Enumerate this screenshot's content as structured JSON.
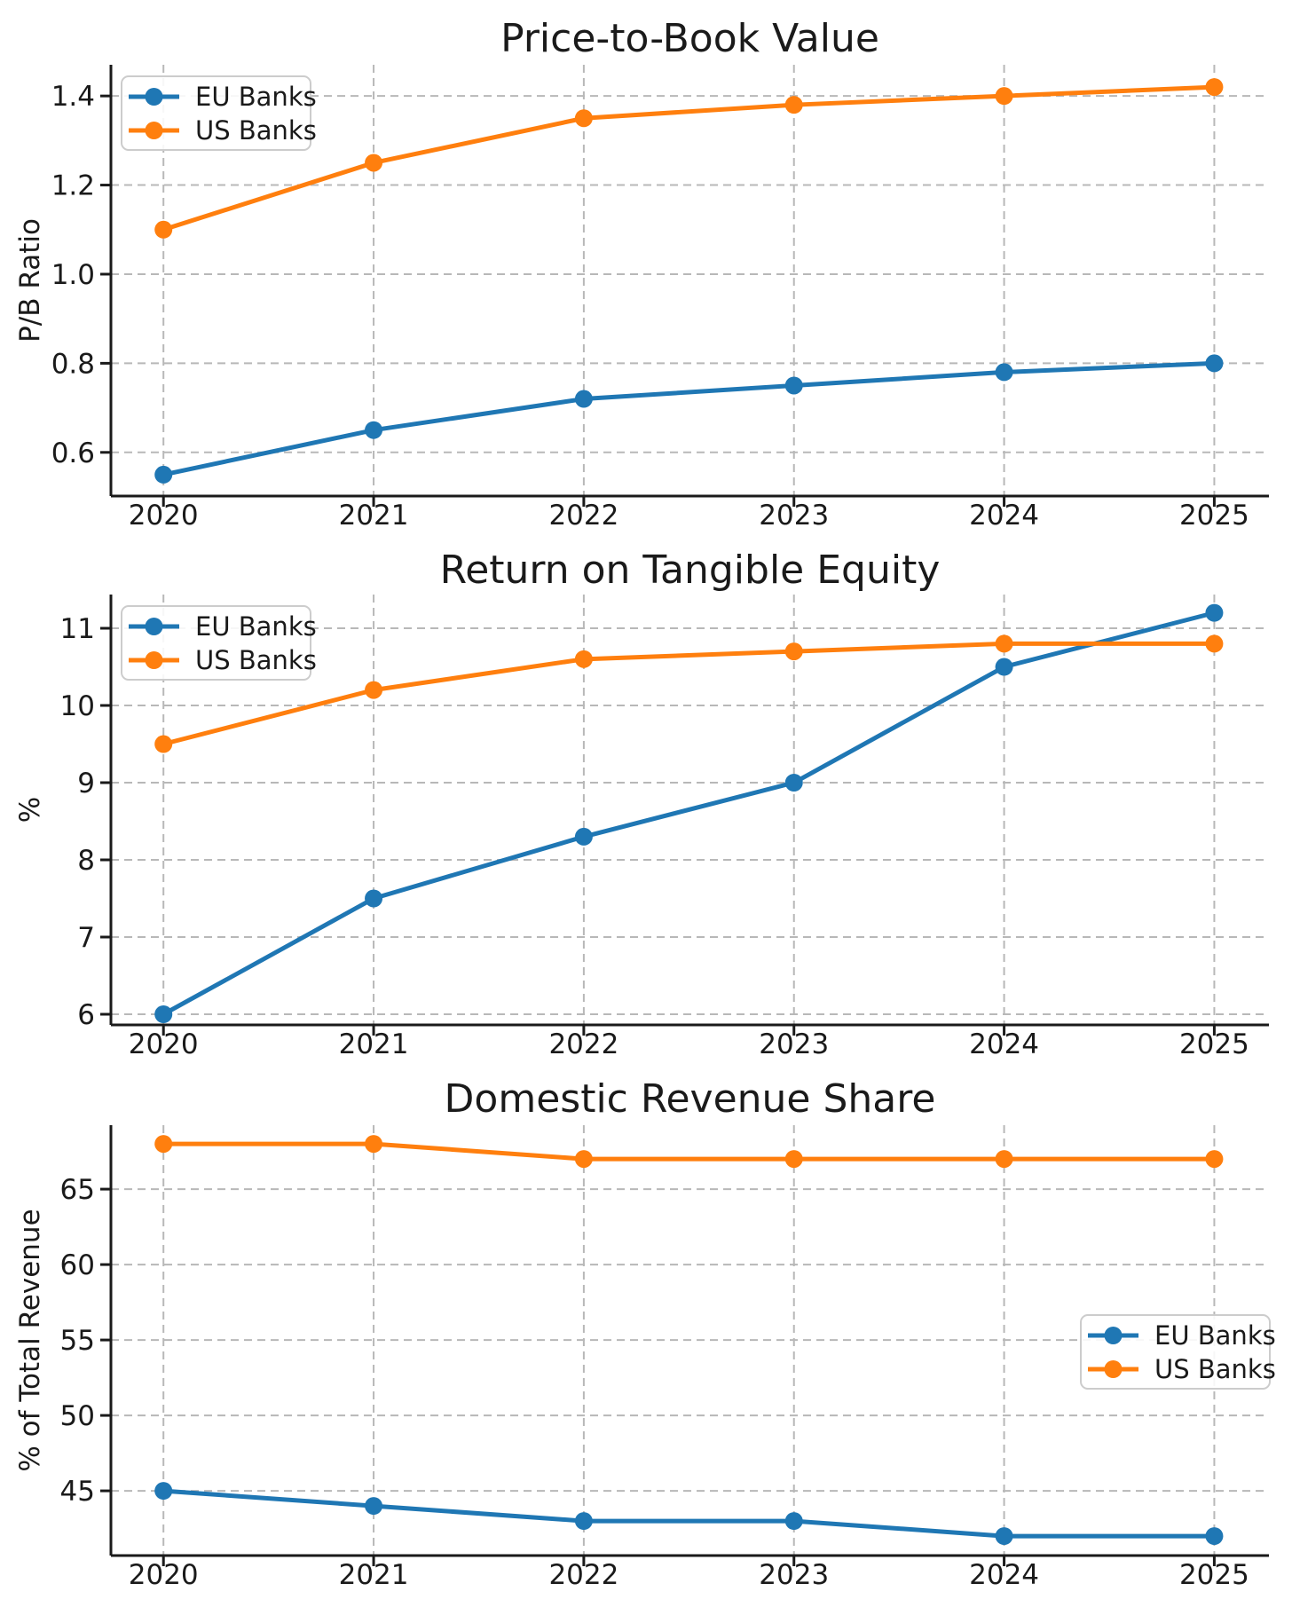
{
  "figure": {
    "background": "#ffffff",
    "text_color": "#1a1a1a",
    "grid_color": "#b8b8b8",
    "spine_color": "#1a1a1a",
    "legend_border_color": "#cccccc"
  },
  "chart_data": [
    {
      "type": "line",
      "title": "Price-to-Book Value",
      "xlabel": "",
      "ylabel": "P/B Ratio",
      "x": [
        2020,
        2021,
        2022,
        2023,
        2024,
        2025
      ],
      "x_tick_labels": [
        "2020",
        "2021",
        "2022",
        "2023",
        "2024",
        "2025"
      ],
      "series": [
        {
          "name": "EU Banks",
          "color": "#1f77b4",
          "values": [
            0.55,
            0.65,
            0.72,
            0.75,
            0.78,
            0.8
          ]
        },
        {
          "name": "US Banks",
          "color": "#ff7f0e",
          "values": [
            1.1,
            1.25,
            1.35,
            1.38,
            1.4,
            1.42
          ]
        }
      ],
      "yticks": [
        0.6,
        0.8,
        1.0,
        1.2,
        1.4
      ],
      "y_tick_labels": [
        "0.6",
        "0.8",
        "1.0",
        "1.2",
        "1.4"
      ],
      "ylim": [
        0.502,
        1.47
      ],
      "xlim": [
        2019.75,
        2025.26
      ],
      "grid": true,
      "marker": "circle",
      "legend": {
        "position": "upper left",
        "labels": [
          "EU Banks",
          "US Banks"
        ]
      }
    },
    {
      "type": "line",
      "title": "Return on Tangible Equity",
      "xlabel": "",
      "ylabel": "%",
      "x": [
        2020,
        2021,
        2022,
        2023,
        2024,
        2025
      ],
      "x_tick_labels": [
        "2020",
        "2021",
        "2022",
        "2023",
        "2024",
        "2025"
      ],
      "series": [
        {
          "name": "EU Banks",
          "color": "#1f77b4",
          "values": [
            6.0,
            7.5,
            8.3,
            9.0,
            10.5,
            11.2
          ]
        },
        {
          "name": "US Banks",
          "color": "#ff7f0e",
          "values": [
            9.5,
            10.2,
            10.6,
            10.7,
            10.8,
            10.8
          ]
        }
      ],
      "yticks": [
        6,
        7,
        8,
        9,
        10,
        11
      ],
      "y_tick_labels": [
        "6",
        "7",
        "8",
        "9",
        "10",
        "11"
      ],
      "ylim": [
        5.862,
        11.437
      ],
      "xlim": [
        2019.75,
        2025.26
      ],
      "grid": true,
      "marker": "circle",
      "legend": {
        "position": "upper left",
        "labels": [
          "EU Banks",
          "US Banks"
        ]
      }
    },
    {
      "type": "line",
      "title": "Domestic Revenue Share",
      "xlabel": "",
      "ylabel": "% of Total Revenue",
      "x": [
        2020,
        2021,
        2022,
        2023,
        2024,
        2025
      ],
      "x_tick_labels": [
        "2020",
        "2021",
        "2022",
        "2023",
        "2024",
        "2025"
      ],
      "series": [
        {
          "name": "EU Banks",
          "color": "#1f77b4",
          "values": [
            45,
            44,
            43,
            43,
            42,
            42
          ]
        },
        {
          "name": "US Banks",
          "color": "#ff7f0e",
          "values": [
            68,
            68,
            67,
            67,
            67,
            67
          ]
        }
      ],
      "yticks": [
        45,
        50,
        55,
        60,
        65
      ],
      "y_tick_labels": [
        "45",
        "50",
        "55",
        "60",
        "65"
      ],
      "ylim": [
        40.71,
        69.24
      ],
      "xlim": [
        2019.75,
        2025.26
      ],
      "grid": true,
      "marker": "circle",
      "legend": {
        "position": "center right",
        "labels": [
          "EU Banks",
          "US Banks"
        ]
      }
    }
  ]
}
